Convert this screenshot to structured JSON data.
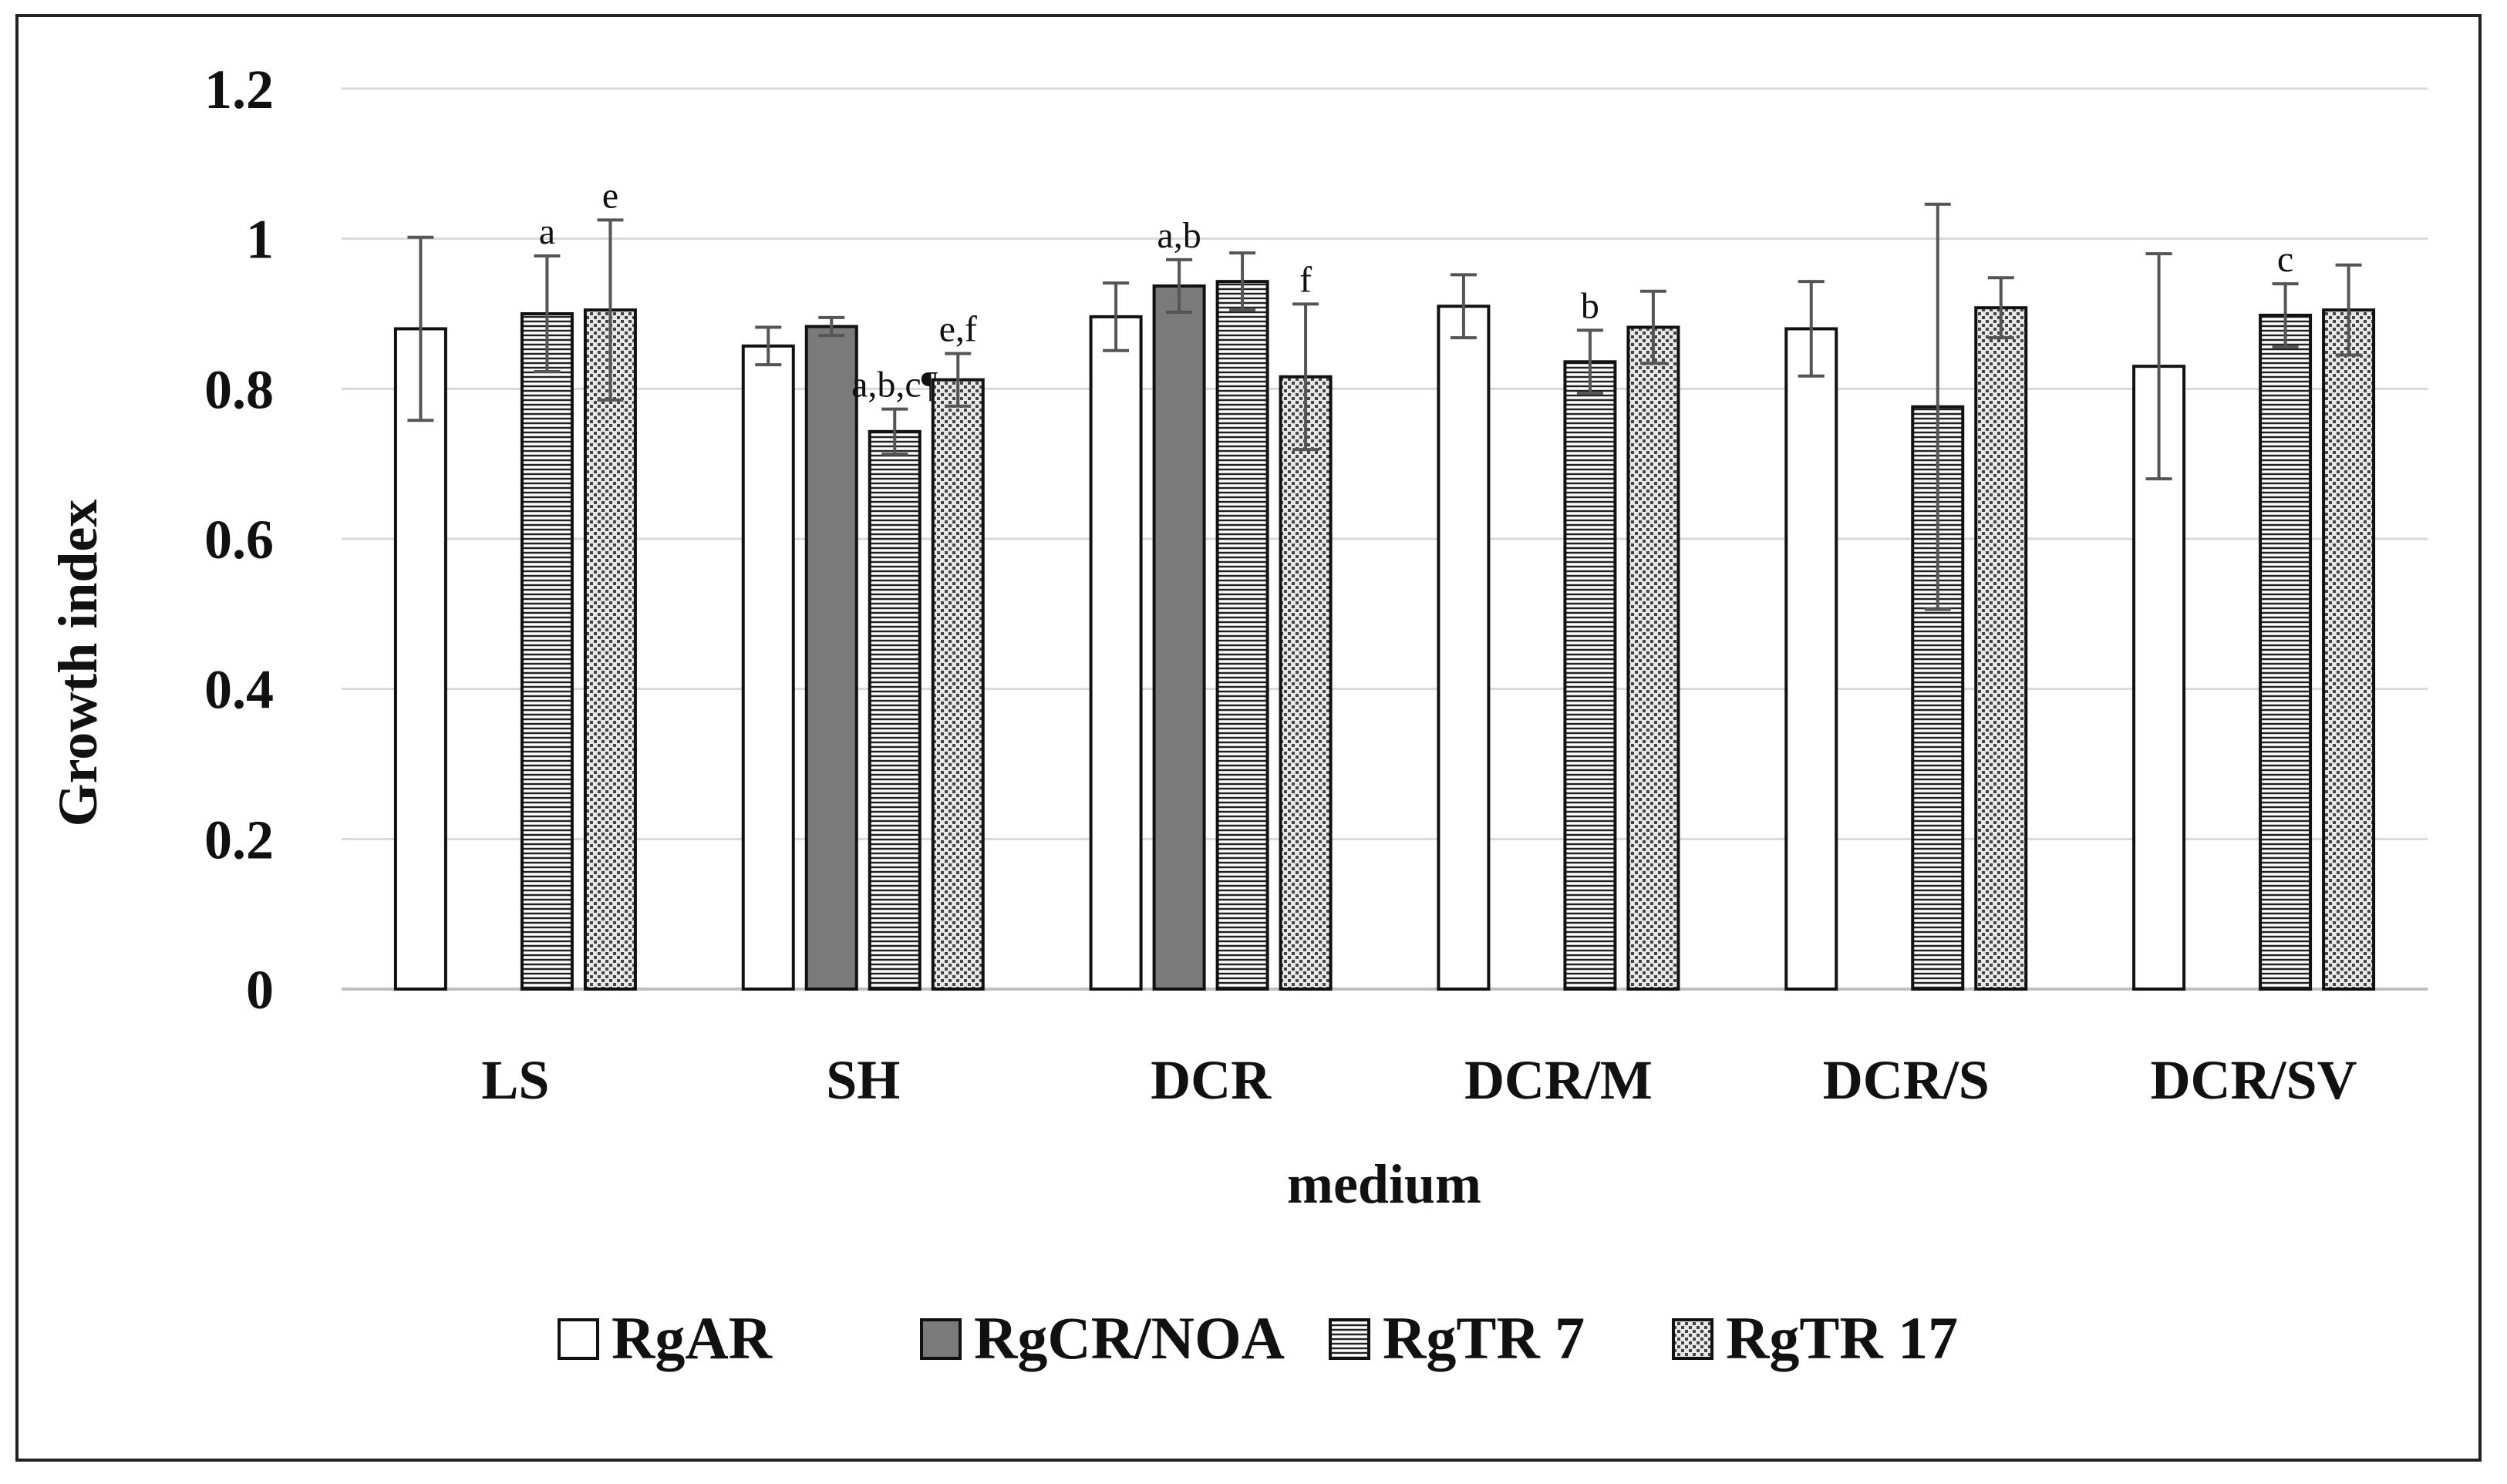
{
  "chart_data": {
    "type": "bar",
    "title": "",
    "xlabel": "medium",
    "ylabel": "Growth index",
    "ylim": [
      0,
      1.2
    ],
    "yticks": [
      "0",
      "0.2",
      "0.4",
      "0.6",
      "0.8",
      "1",
      "1.2"
    ],
    "grid": true,
    "legend_position": "bottom",
    "categories": [
      "LS",
      "SH",
      "DCR",
      "DCR/M",
      "DCR/S",
      "DCR/SV"
    ],
    "series": [
      {
        "name": "RgAR",
        "pattern": "white",
        "values": [
          0.88,
          0.857,
          0.896,
          0.91,
          0.88,
          0.83
        ],
        "errors": [
          0.122,
          0.025,
          0.045,
          0.042,
          0.063,
          0.15
        ],
        "labels": [
          "",
          "",
          "",
          "",
          "",
          ""
        ]
      },
      {
        "name": "RgCR/NOA",
        "pattern": "gray",
        "values": [
          null,
          0.883,
          0.937,
          null,
          null,
          null
        ],
        "errors": [
          null,
          0.012,
          0.035,
          null,
          null,
          null
        ],
        "labels": [
          "",
          "",
          "a,b",
          "",
          "",
          ""
        ]
      },
      {
        "name": "RgTR 7",
        "pattern": "horizontal",
        "values": [
          0.9,
          0.743,
          0.943,
          0.836,
          0.776,
          0.898
        ],
        "errors": [
          0.077,
          0.03,
          0.038,
          0.042,
          0.27,
          0.042
        ],
        "labels": [
          "a",
          "a,b,c¶",
          "",
          "b",
          "",
          "c"
        ]
      },
      {
        "name": "RgTR 17",
        "pattern": "dots",
        "values": [
          0.905,
          0.812,
          0.816,
          0.882,
          0.908,
          0.905
        ],
        "errors": [
          0.12,
          0.035,
          0.097,
          0.048,
          0.04,
          0.06
        ],
        "labels": [
          "e",
          "e,f",
          "f",
          "",
          "",
          ""
        ]
      }
    ],
    "colors": {
      "bar_outline": "#111111",
      "gray_fill": "#7a7a7a",
      "gridline": "#d9d9d9",
      "error_bar": "#555555"
    }
  }
}
